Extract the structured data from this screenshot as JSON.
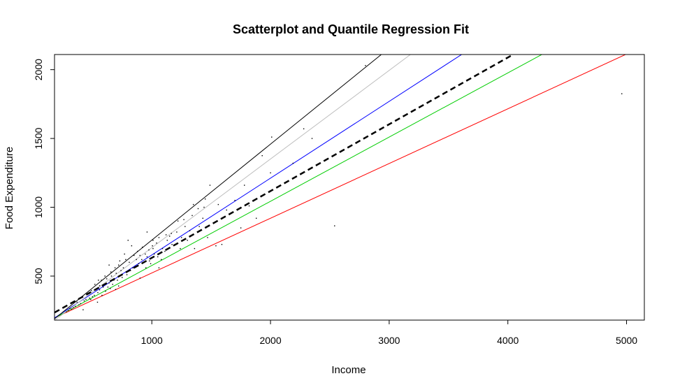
{
  "chart_data": {
    "type": "scatter",
    "title": "Scatterplot and Quantile Regression Fit",
    "xlabel": "Income",
    "ylabel": "Food Expenditure",
    "xlim": [
      180,
      5150
    ],
    "ylim": [
      180,
      2110
    ],
    "x_ticks": [
      1000,
      2000,
      3000,
      4000,
      5000
    ],
    "y_ticks": [
      500,
      1000,
      1500,
      2000
    ],
    "grid": false,
    "legend": "none",
    "points": [
      [
        421,
        255
      ],
      [
        542,
        310
      ],
      [
        901,
        485
      ],
      [
        695,
        402
      ],
      [
        1165,
        810
      ],
      [
        720,
        428
      ],
      [
        485,
        330
      ],
      [
        1540,
        720
      ],
      [
        560,
        400
      ],
      [
        2540,
        865
      ],
      [
        2280,
        1570
      ],
      [
        2190,
        1320
      ],
      [
        2800,
        2030
      ],
      [
        1780,
        1160
      ],
      [
        1930,
        1375
      ],
      [
        2000,
        1250
      ],
      [
        2010,
        1510
      ],
      [
        4960,
        1825
      ],
      [
        2350,
        1500
      ],
      [
        1590,
        730
      ],
      [
        1750,
        850
      ],
      [
        1630,
        980
      ],
      [
        1270,
        910
      ],
      [
        1320,
        830
      ],
      [
        1400,
        860
      ],
      [
        1470,
        780
      ],
      [
        1490,
        1160
      ],
      [
        1350,
        1020
      ],
      [
        1150,
        790
      ],
      [
        1060,
        560
      ],
      [
        950,
        560
      ],
      [
        980,
        610
      ],
      [
        1010,
        700
      ],
      [
        1080,
        620
      ],
      [
        1110,
        680
      ],
      [
        1200,
        730
      ],
      [
        1240,
        700
      ],
      [
        1300,
        760
      ],
      [
        1360,
        700
      ],
      [
        1430,
        920
      ],
      [
        1560,
        1020
      ],
      [
        1670,
        960
      ],
      [
        1820,
        1010
      ],
      [
        1880,
        920
      ],
      [
        1700,
        1050
      ],
      [
        1450,
        1060
      ],
      [
        1220,
        900
      ],
      [
        1120,
        800
      ],
      [
        1060,
        780
      ],
      [
        1010,
        760
      ],
      [
        960,
        820
      ],
      [
        920,
        710
      ],
      [
        880,
        680
      ],
      [
        850,
        650
      ],
      [
        830,
        720
      ],
      [
        800,
        760
      ],
      [
        780,
        620
      ],
      [
        760,
        560
      ],
      [
        740,
        540
      ],
      [
        720,
        580
      ],
      [
        700,
        520
      ],
      [
        680,
        470
      ],
      [
        660,
        500
      ],
      [
        640,
        450
      ],
      [
        620,
        480
      ],
      [
        600,
        440
      ],
      [
        590,
        420
      ],
      [
        575,
        470
      ],
      [
        560,
        430
      ],
      [
        545,
        380
      ],
      [
        530,
        400
      ],
      [
        515,
        360
      ],
      [
        500,
        350
      ],
      [
        490,
        395
      ],
      [
        475,
        340
      ],
      [
        460,
        375
      ],
      [
        445,
        330
      ],
      [
        430,
        320
      ],
      [
        415,
        345
      ],
      [
        400,
        300
      ],
      [
        385,
        290
      ],
      [
        370,
        310
      ],
      [
        355,
        280
      ],
      [
        340,
        270
      ],
      [
        325,
        260
      ],
      [
        310,
        265
      ],
      [
        295,
        250
      ],
      [
        280,
        240
      ],
      [
        640,
        580
      ],
      [
        690,
        560
      ],
      [
        730,
        610
      ],
      [
        770,
        660
      ],
      [
        810,
        600
      ],
      [
        840,
        560
      ],
      [
        870,
        620
      ],
      [
        900,
        650
      ],
      [
        930,
        600
      ],
      [
        960,
        640
      ],
      [
        990,
        590
      ],
      [
        1020,
        660
      ],
      [
        1050,
        640
      ],
      [
        1090,
        700
      ],
      [
        1130,
        760
      ],
      [
        1170,
        730
      ],
      [
        1210,
        820
      ],
      [
        1250,
        780
      ],
      [
        1280,
        860
      ],
      [
        1340,
        940
      ],
      [
        1390,
        990
      ],
      [
        1440,
        1000
      ],
      [
        580,
        360
      ],
      [
        610,
        390
      ],
      [
        630,
        420
      ],
      [
        650,
        410
      ],
      [
        670,
        440
      ],
      [
        710,
        470
      ],
      [
        750,
        490
      ],
      [
        790,
        510
      ],
      [
        820,
        540
      ],
      [
        860,
        570
      ],
      [
        890,
        590
      ],
      [
        915,
        620
      ],
      [
        945,
        660
      ],
      [
        975,
        690
      ],
      [
        1005,
        720
      ],
      [
        1040,
        740
      ],
      [
        520,
        440
      ],
      [
        550,
        470
      ],
      [
        605,
        500
      ],
      [
        655,
        530
      ]
    ],
    "series": [
      {
        "quantile": 0.05,
        "color": "#ff0000",
        "line_style": "solid",
        "intercept": 124.9,
        "slope": 0.3977
      },
      {
        "quantile": 0.1,
        "color": "#00cd00",
        "line_style": "solid",
        "intercept": 110.5,
        "slope": 0.4665
      },
      {
        "quantile": 0.25,
        "color": "#0000ff",
        "line_style": "solid",
        "intercept": 95.5,
        "slope": 0.558
      },
      {
        "quantile": 0.75,
        "color": "#bebebe",
        "line_style": "solid",
        "intercept": 62.4,
        "slope": 0.6441
      },
      {
        "quantile": 0.95,
        "color": "#000000",
        "line_style": "solid",
        "intercept": 64.1,
        "slope": 0.6974
      },
      {
        "quantile": 0.5,
        "color": "#000000",
        "line_style": "dashed",
        "intercept": 147.5,
        "slope": 0.4852
      }
    ]
  }
}
